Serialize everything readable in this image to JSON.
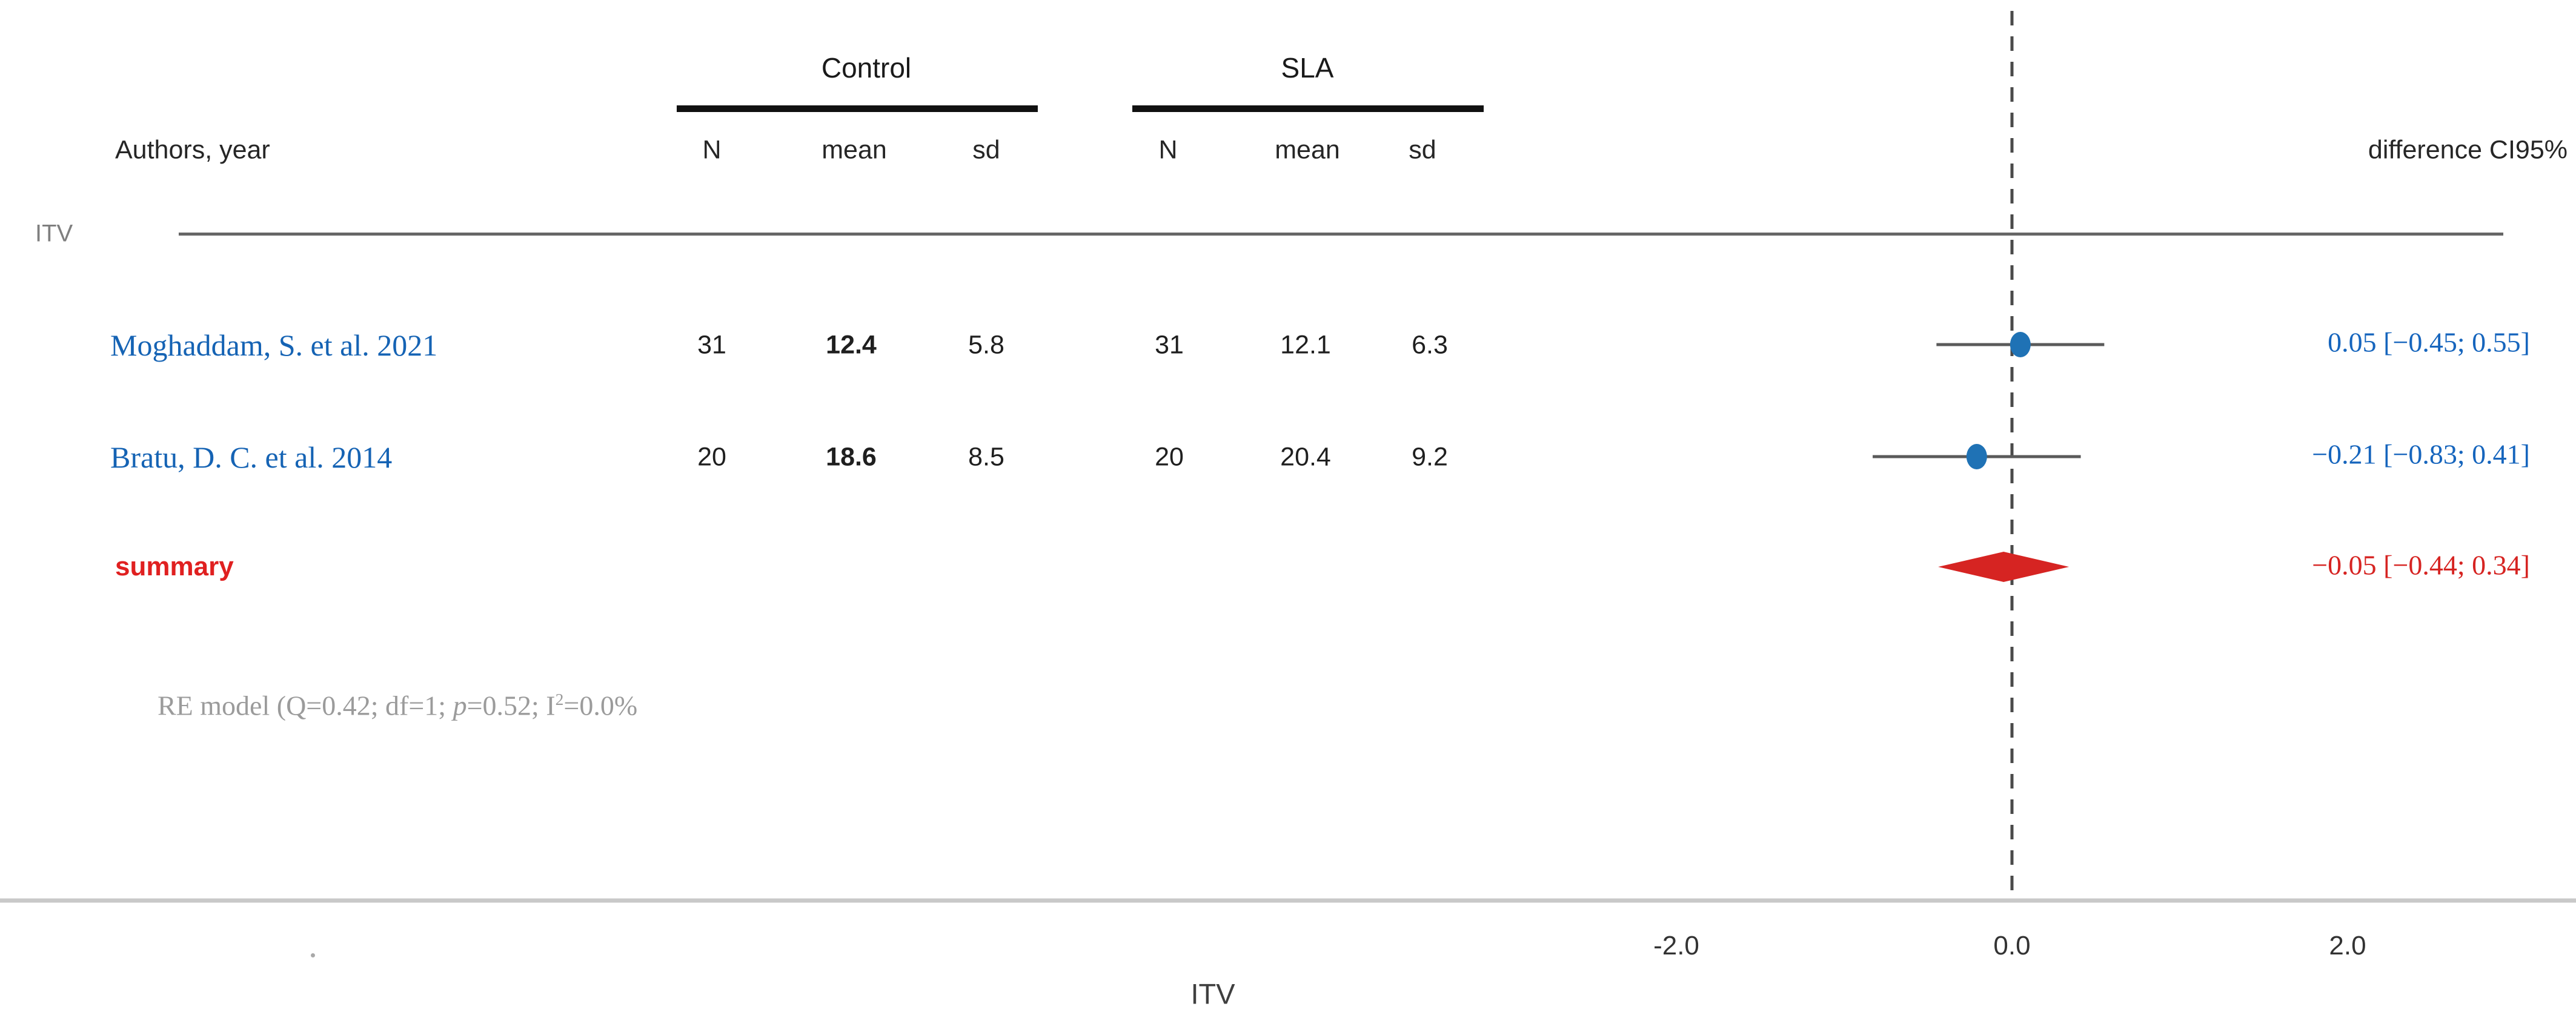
{
  "header": {
    "group1_label": "Control",
    "group2_label": "SLA",
    "authors_col": "Authors, year",
    "n_col": "N",
    "mean_col": "mean",
    "sd_col": "sd",
    "difference_col": "difference CI95%"
  },
  "section_label": "ITV",
  "footnote": {
    "full_text": "RE model (Q=0.42; df=1; p=0.52; I²=0.0%",
    "part1": "RE model (Q=0.42; df=1; ",
    "p_italic": "p",
    "part2": "=0.52; I",
    "sup": "2",
    "part3": "=0.0%"
  },
  "chart_data": {
    "type": "forest",
    "xlabel": "ITV",
    "x_ticks": [
      -2.0,
      0.0,
      2.0
    ],
    "x_tick_labels": [
      "-2.0",
      "0.0",
      "2.0"
    ],
    "xlim": [
      -2.2,
      2.2
    ],
    "zero_line": 0.0,
    "grid": false,
    "colors": {
      "study_marker": "#1f72b5",
      "study_text": "#1563b4",
      "ci_text_blue": "#1665bd",
      "summary_red": "#d62422",
      "summary_label_red": "#e02020"
    },
    "studies": [
      {
        "label": "Moghaddam, S. et al. 2021",
        "control": {
          "n": "31",
          "mean": "12.4",
          "sd": "5.8"
        },
        "sla": {
          "n": "31",
          "mean": "12.1",
          "sd": "6.3"
        },
        "estimate": 0.05,
        "ci_low": -0.45,
        "ci_high": 0.55,
        "ci_text": "0.05 [−0.45; 0.55]"
      },
      {
        "label": "Bratu, D. C. et al. 2014",
        "control": {
          "n": "20",
          "mean": "18.6",
          "sd": "8.5"
        },
        "sla": {
          "n": "20",
          "mean": "20.4",
          "sd": "9.2"
        },
        "estimate": -0.21,
        "ci_low": -0.83,
        "ci_high": 0.41,
        "ci_text": "−0.21 [−0.83; 0.41]"
      }
    ],
    "summary": {
      "label": "summary",
      "estimate": -0.05,
      "ci_low": -0.44,
      "ci_high": 0.34,
      "ci_text": "−0.05 [−0.44; 0.34]"
    }
  }
}
